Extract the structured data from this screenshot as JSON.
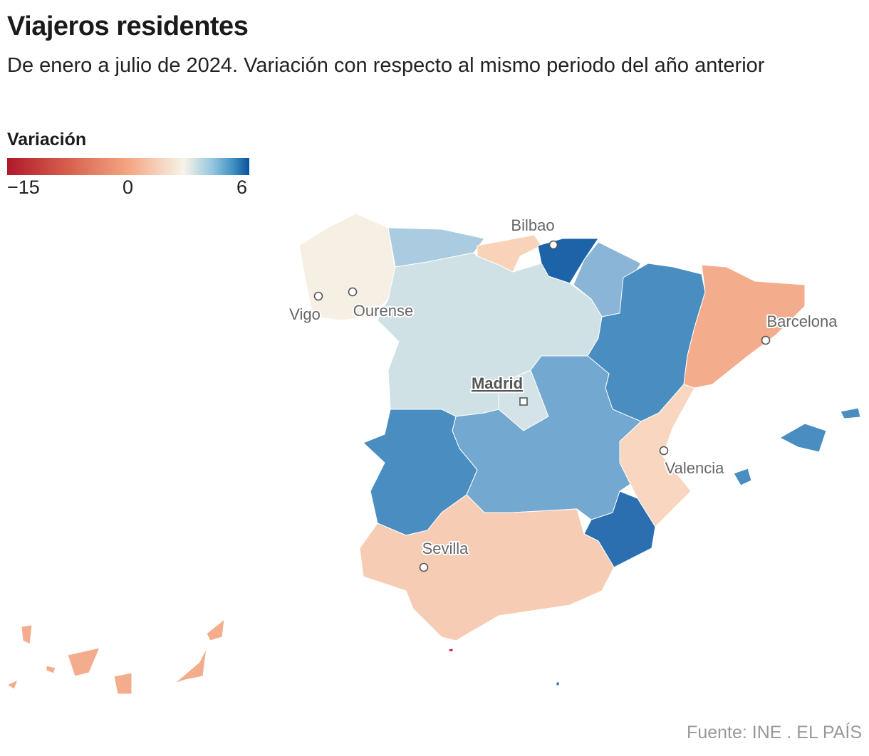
{
  "title": "Viajeros residentes",
  "subtitle": "De enero a julio de 2024. Variación con respecto al mismo periodo del año anterior",
  "legend": {
    "title": "Variación",
    "min_label": "−15",
    "mid_label": "0",
    "max_label": "6",
    "colors": [
      "#b2182b",
      "#f4a582",
      "#f7f4e8",
      "#92c5de",
      "#08519c"
    ]
  },
  "source": "Fuente: INE . EL PAÍS",
  "map": {
    "regions": [
      {
        "id": "galicia",
        "color": "#f6efe4"
      },
      {
        "id": "asturias",
        "color": "#aacbe0"
      },
      {
        "id": "cantabria",
        "color": "#f8d3b9"
      },
      {
        "id": "pais-vasco",
        "color": "#1d63a8"
      },
      {
        "id": "navarra",
        "color": "#8ab5d7"
      },
      {
        "id": "castilla-y-leon",
        "color": "#d0e1e6"
      },
      {
        "id": "madrid",
        "color": "#d3e3e8"
      },
      {
        "id": "aragon",
        "color": "#4a8dc0"
      },
      {
        "id": "cataluna",
        "color": "#f4ad8c"
      },
      {
        "id": "valencia",
        "color": "#f8d6bf"
      },
      {
        "id": "murcia",
        "color": "#2b6fb0"
      },
      {
        "id": "castilla-la-mancha",
        "color": "#73a8d0"
      },
      {
        "id": "extremadura",
        "color": "#4a8dc0"
      },
      {
        "id": "andalucia",
        "color": "#f6cdb4"
      },
      {
        "id": "baleares",
        "color": "#4a8dc0"
      },
      {
        "id": "canarias",
        "color": "#f4ad8c"
      },
      {
        "id": "ceuta",
        "color": "#b2182b"
      },
      {
        "id": "melilla",
        "color": "#2b6fb0"
      }
    ],
    "cities": [
      {
        "name": "Bilbao",
        "capital": false
      },
      {
        "name": "Vigo",
        "capital": false
      },
      {
        "name": "Ourense",
        "capital": false
      },
      {
        "name": "Barcelona",
        "capital": false
      },
      {
        "name": "Madrid",
        "capital": true
      },
      {
        "name": "Valencia",
        "capital": false
      },
      {
        "name": "Sevilla",
        "capital": false
      }
    ]
  }
}
